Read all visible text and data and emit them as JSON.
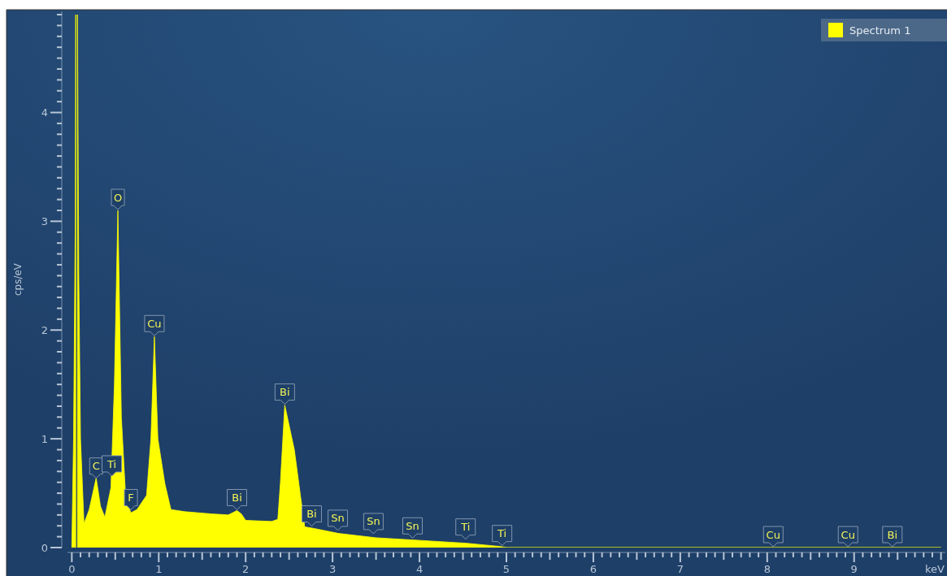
{
  "chart_data": {
    "type": "area",
    "xlabel": "keV",
    "ylabel": "cps/eV",
    "legend": "top right",
    "xlim": [
      -0.05,
      10.05
    ],
    "ylim": [
      0,
      4.93
    ],
    "xticks": [
      0,
      {
        "value": 0.1,
        "label": null
      },
      {
        "value": 0.2,
        "label": null
      },
      {
        "value": 0.3,
        "label": null
      },
      {
        "value": 0.4,
        "label": null
      },
      {
        "value": 0.5,
        "label": null
      },
      {
        "value": 0.6,
        "label": null
      },
      {
        "value": 0.7,
        "label": null
      },
      {
        "value": 0.8,
        "label": null
      },
      {
        "value": 0.9,
        "label": null
      },
      1,
      {
        "value": 1.1,
        "label": null
      },
      {
        "value": 1.2,
        "label": null
      },
      {
        "value": 1.3,
        "label": null
      },
      {
        "value": 1.4,
        "label": null
      },
      {
        "value": 1.5,
        "label": null
      },
      {
        "value": 1.6,
        "label": null
      },
      {
        "value": 1.7,
        "label": null
      },
      {
        "value": 1.8,
        "label": null
      },
      {
        "value": 1.9,
        "label": null
      },
      2,
      {
        "value": 2.1,
        "label": null
      },
      {
        "value": 2.2,
        "label": null
      },
      {
        "value": 2.3,
        "label": null
      },
      {
        "value": 2.4,
        "label": null
      },
      {
        "value": 2.5,
        "label": null
      },
      {
        "value": 2.6,
        "label": null
      },
      {
        "value": 2.7,
        "label": null
      },
      {
        "value": 2.8,
        "label": null
      },
      {
        "value": 2.9,
        "label": null
      },
      3,
      {
        "value": 3.1,
        "label": null
      },
      {
        "value": 3.2,
        "label": null
      },
      {
        "value": 3.3,
        "label": null
      },
      {
        "value": 3.4,
        "label": null
      },
      {
        "value": 3.5,
        "label": null
      },
      {
        "value": 3.6,
        "label": null
      },
      {
        "value": 3.7,
        "label": null
      },
      {
        "value": 3.8,
        "label": null
      },
      {
        "value": 3.9,
        "label": null
      },
      4,
      {
        "value": 4.1,
        "label": null
      },
      {
        "value": 4.2,
        "label": null
      },
      {
        "value": 4.3,
        "label": null
      },
      {
        "value": 4.4,
        "label": null
      },
      {
        "value": 4.5,
        "label": null
      },
      {
        "value": 4.6,
        "label": null
      },
      {
        "value": 4.7,
        "label": null
      },
      {
        "value": 4.8,
        "label": null
      },
      {
        "value": 4.9,
        "label": null
      },
      5,
      {
        "value": 5.1,
        "label": null
      },
      {
        "value": 5.2,
        "label": null
      },
      {
        "value": 5.3,
        "label": null
      },
      {
        "value": 5.4,
        "label": null
      },
      {
        "value": 5.5,
        "label": null
      },
      {
        "value": 5.6,
        "label": null
      },
      {
        "value": 5.7,
        "label": null
      },
      {
        "value": 5.8,
        "label": null
      },
      {
        "value": 5.9,
        "label": null
      },
      6,
      {
        "value": 6.1,
        "label": null
      },
      {
        "value": 6.2,
        "label": null
      },
      {
        "value": 6.3,
        "label": null
      },
      {
        "value": 6.4,
        "label": null
      },
      {
        "value": 6.5,
        "label": null
      },
      {
        "value": 6.6,
        "label": null
      },
      {
        "value": 6.7,
        "label": null
      },
      {
        "value": 6.8,
        "label": null
      },
      {
        "value": 6.9,
        "label": null
      },
      7,
      {
        "value": 7.1,
        "label": null
      },
      {
        "value": 7.2,
        "label": null
      },
      {
        "value": 7.3,
        "label": null
      },
      {
        "value": 7.4,
        "label": null
      },
      {
        "value": 7.5,
        "label": null
      },
      {
        "value": 7.6,
        "label": null
      },
      {
        "value": 7.7,
        "label": null
      },
      {
        "value": 7.8,
        "label": null
      },
      {
        "value": 7.9,
        "label": null
      },
      8,
      {
        "value": 8.1,
        "label": null
      },
      {
        "value": 8.2,
        "label": null
      },
      {
        "value": 8.3,
        "label": null
      },
      {
        "value": 8.4,
        "label": null
      },
      {
        "value": 8.5,
        "label": null
      },
      {
        "value": 8.6,
        "label": null
      },
      {
        "value": 8.7,
        "label": null
      },
      {
        "value": 8.8,
        "label": null
      },
      {
        "value": 8.9,
        "label": null
      },
      9,
      {
        "value": 9.1,
        "label": null
      },
      {
        "value": 9.2,
        "label": null
      },
      {
        "value": 9.3,
        "label": null
      },
      {
        "value": 9.4,
        "label": null
      },
      {
        "value": 9.5,
        "label": null
      },
      {
        "value": 9.6,
        "label": null
      },
      {
        "value": 9.7,
        "label": null
      },
      {
        "value": 9.8,
        "label": null
      },
      {
        "value": 9.9,
        "label": null
      },
      {
        "value": 10,
        "label": null
      }
    ],
    "yticks": [
      0,
      {
        "value": 0.1,
        "label": null
      },
      {
        "value": 0.2,
        "label": null
      },
      {
        "value": 0.3,
        "label": null
      },
      {
        "value": 0.4,
        "label": null
      },
      {
        "value": 0.5,
        "label": null
      },
      {
        "value": 0.6,
        "label": null
      },
      {
        "value": 0.7,
        "label": null
      },
      {
        "value": 0.8,
        "label": null
      },
      {
        "value": 0.9,
        "label": null
      },
      1,
      {
        "value": 1.1,
        "label": null
      },
      {
        "value": 1.2,
        "label": null
      },
      {
        "value": 1.3,
        "label": null
      },
      {
        "value": 1.4,
        "label": null
      },
      {
        "value": 1.5,
        "label": null
      },
      {
        "value": 1.6,
        "label": null
      },
      {
        "value": 1.7,
        "label": null
      },
      {
        "value": 1.8,
        "label": null
      },
      {
        "value": 1.9,
        "label": null
      },
      2,
      {
        "value": 2.1,
        "label": null
      },
      {
        "value": 2.2,
        "label": null
      },
      {
        "value": 2.3,
        "label": null
      },
      {
        "value": 2.4,
        "label": null
      },
      {
        "value": 2.5,
        "label": null
      },
      {
        "value": 2.6,
        "label": null
      },
      {
        "value": 2.7,
        "label": null
      },
      {
        "value": 2.8,
        "label": null
      },
      {
        "value": 2.9,
        "label": null
      },
      3,
      {
        "value": 3.1,
        "label": null
      },
      {
        "value": 3.2,
        "label": null
      },
      {
        "value": 3.3,
        "label": null
      },
      {
        "value": 3.4,
        "label": null
      },
      {
        "value": 3.5,
        "label": null
      },
      {
        "value": 3.6,
        "label": null
      },
      {
        "value": 3.7,
        "label": null
      },
      {
        "value": 3.8,
        "label": null
      },
      {
        "value": 3.9,
        "label": null
      },
      4,
      {
        "value": 4.1,
        "label": null
      },
      {
        "value": 4.2,
        "label": null
      },
      {
        "value": 4.3,
        "label": null
      },
      {
        "value": 4.4,
        "label": null
      },
      {
        "value": 4.5,
        "label": null
      },
      {
        "value": 4.6,
        "label": null
      },
      {
        "value": 4.7,
        "label": null
      },
      {
        "value": 4.8,
        "label": null
      },
      {
        "value": 4.9,
        "label": null
      }
    ],
    "x": [
      0,
      0.02,
      0.04,
      0.045,
      0.05,
      0.06,
      0.065,
      0.08,
      0.1,
      0.14,
      0.2,
      0.28,
      0.33,
      0.38,
      0.45,
      0.49,
      0.53,
      0.57,
      0.62,
      0.68,
      0.75,
      0.86,
      0.91,
      0.95,
      0.99,
      1.07,
      1.14,
      1.3,
      1.6,
      1.8,
      1.9,
      1.95,
      2.0,
      2.3,
      2.37,
      2.4,
      2.45,
      2.56,
      2.63,
      2.68,
      2.76,
      3.07,
      3.5,
      3.93,
      4.54,
      4.93,
      5.0,
      8.07,
      8.93,
      9.44,
      10.0
    ],
    "series": [
      {
        "name": "Spectrum 1",
        "color": "#ffff00",
        "values": [
          0,
          1.0,
          3.0,
          4.9,
          null,
          null,
          4.9,
          2.5,
          1.0,
          0.22,
          0.35,
          0.64,
          0.38,
          0.28,
          0.55,
          1.5,
          3.1,
          1.2,
          0.45,
          0.32,
          0.35,
          0.48,
          1.0,
          1.94,
          1.0,
          0.59,
          0.35,
          0.33,
          0.31,
          0.3,
          0.34,
          0.31,
          0.25,
          0.24,
          0.26,
          0.6,
          1.31,
          0.9,
          0.48,
          0.19,
          0.18,
          0.13,
          0.09,
          0.07,
          0.04,
          0.01,
          0,
          0,
          0,
          0,
          0
        ]
      }
    ],
    "annotations": [
      {
        "text": "C",
        "x": 0.28,
        "y": 0.63
      },
      {
        "text": "Ti",
        "x": 0.46,
        "y": 0.65
      },
      {
        "text": "O",
        "x": 0.53,
        "y": 3.1
      },
      {
        "text": "F",
        "x": 0.68,
        "y": 0.34
      },
      {
        "text": "Cu",
        "x": 0.95,
        "y": 1.94
      },
      {
        "text": "Bi",
        "x": 1.9,
        "y": 0.34
      },
      {
        "text": "Bi",
        "x": 2.45,
        "y": 1.31
      },
      {
        "text": "Bi",
        "x": 2.76,
        "y": 0.19
      },
      {
        "text": "Sn",
        "x": 3.06,
        "y": 0.15
      },
      {
        "text": "Sn",
        "x": 3.47,
        "y": 0.12
      },
      {
        "text": "Sn",
        "x": 3.92,
        "y": 0.08
      },
      {
        "text": "Ti",
        "x": 4.53,
        "y": 0.07
      },
      {
        "text": "Ti",
        "x": 4.95,
        "y": 0.01
      },
      {
        "text": "Cu",
        "x": 8.07,
        "y": 0
      },
      {
        "text": "Cu",
        "x": 8.93,
        "y": 0
      },
      {
        "text": "Bi",
        "x": 9.44,
        "y": 0
      }
    ]
  }
}
